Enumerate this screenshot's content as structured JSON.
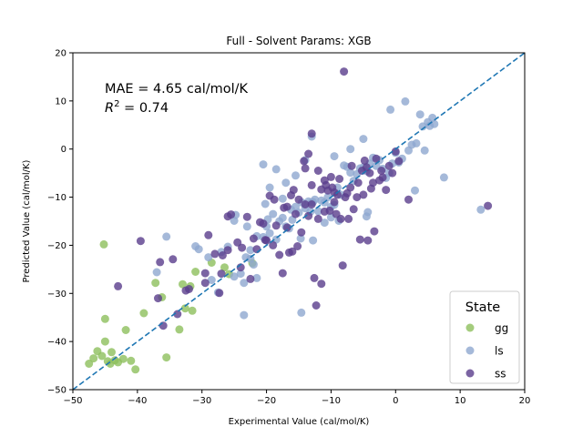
{
  "chart_data": {
    "type": "scatter",
    "title": "Full - Solvent Params: XGB",
    "xlabel": "Experimental Value (cal/mol/K)",
    "ylabel": "Predicted Value (cal/mol/K)",
    "xlim": [
      -50,
      20
    ],
    "ylim": [
      -50,
      20
    ],
    "xticks": [
      -50,
      -40,
      -30,
      -20,
      -10,
      0,
      10,
      20
    ],
    "yticks": [
      -50,
      -40,
      -30,
      -20,
      -10,
      0,
      10,
      20
    ],
    "grid": false,
    "annotations": {
      "mae": "MAE = 4.65 cal/mol/K",
      "r2_label": "R",
      "r2_sup": "2",
      "r2_value": " = 0.74"
    },
    "reference_line": {
      "style": "dashed",
      "x": [
        -50,
        20
      ],
      "y": [
        -50,
        20
      ],
      "color": "#1f77b4"
    },
    "legend": {
      "title": "State",
      "placement": "lower-right"
    },
    "series": [
      {
        "name": "gg",
        "color": "#8dbf5c",
        "points": [
          [
            -45.2,
            -19.8
          ],
          [
            -47.5,
            -44.6
          ],
          [
            -46.8,
            -43.5
          ],
          [
            -46.2,
            -42.0
          ],
          [
            -45.5,
            -43.0
          ],
          [
            -45.0,
            -40.0
          ],
          [
            -44.6,
            -44.1
          ],
          [
            -44.0,
            -42.2
          ],
          [
            -43.5,
            -43.9
          ],
          [
            -44.2,
            -44.6
          ],
          [
            -43.0,
            -44.3
          ],
          [
            -42.2,
            -43.6
          ],
          [
            -41.0,
            -44.0
          ],
          [
            -40.3,
            -45.8
          ],
          [
            -41.8,
            -37.6
          ],
          [
            -45.0,
            -35.3
          ],
          [
            -39.0,
            -34.1
          ],
          [
            -37.2,
            -27.8
          ],
          [
            -36.2,
            -30.8
          ],
          [
            -35.5,
            -43.3
          ],
          [
            -33.0,
            -28.1
          ],
          [
            -32.6,
            -33.1
          ],
          [
            -33.5,
            -37.5
          ],
          [
            -31.8,
            -28.5
          ],
          [
            -31.5,
            -33.6
          ],
          [
            -31.0,
            -25.5
          ],
          [
            -28.5,
            -23.6
          ],
          [
            -26.5,
            -24.6
          ],
          [
            -25.8,
            -26.0
          ],
          [
            -22.2,
            -23.7
          ]
        ]
      },
      {
        "name": "ls",
        "color": "#8fa8cf",
        "points": [
          [
            -35.5,
            -18.2
          ],
          [
            -37.0,
            -25.6
          ],
          [
            -31.0,
            -20.2
          ],
          [
            -30.5,
            -20.8
          ],
          [
            -27.0,
            -21.4
          ],
          [
            -29.0,
            -22.5
          ],
          [
            -28.5,
            -27.2
          ],
          [
            -27.5,
            -29.8
          ],
          [
            -25.0,
            -26.5
          ],
          [
            -24.0,
            -25.9
          ],
          [
            -23.5,
            -27.8
          ],
          [
            -23.2,
            -22.5
          ],
          [
            -22.5,
            -22.8
          ],
          [
            -22.0,
            -24.0
          ],
          [
            -21.5,
            -26.8
          ],
          [
            -23.5,
            -34.5
          ],
          [
            -25.0,
            -14.9
          ],
          [
            -24.8,
            -13.7
          ],
          [
            -23.0,
            -16.1
          ],
          [
            -21.5,
            -18.1
          ],
          [
            -20.5,
            -18.3
          ],
          [
            -20.0,
            -16.1
          ],
          [
            -19.8,
            -14.6
          ],
          [
            -19.5,
            -17.5
          ],
          [
            -19.0,
            -13.5
          ],
          [
            -18.5,
            -18.8
          ],
          [
            -18.0,
            -15.0
          ],
          [
            -17.5,
            -14.3
          ],
          [
            -17.0,
            -16.1
          ],
          [
            -16.5,
            -16.5
          ],
          [
            -16.0,
            -14.7
          ],
          [
            -15.5,
            -12.0
          ],
          [
            -15.0,
            -13.2
          ],
          [
            -14.7,
            -18.6
          ],
          [
            -14.5,
            -11.1
          ],
          [
            -14.0,
            -12.3
          ],
          [
            -13.5,
            -10.9
          ],
          [
            -13.2,
            -13.0
          ],
          [
            -13.0,
            -11.1
          ],
          [
            -12.8,
            -11.0
          ],
          [
            -12.5,
            -10.5
          ],
          [
            -12.0,
            -12.9
          ],
          [
            -11.5,
            -10.7
          ],
          [
            -11.0,
            -11.1
          ],
          [
            -10.5,
            -10.0
          ],
          [
            -10.0,
            -12.0
          ],
          [
            -9.5,
            -11.6
          ],
          [
            -9.0,
            -8.0
          ],
          [
            -8.8,
            -14.9
          ],
          [
            -8.5,
            -9.5
          ],
          [
            -8.0,
            -3.4
          ],
          [
            -7.5,
            -3.7
          ],
          [
            -7.0,
            -4.9
          ],
          [
            -6.5,
            -6.6
          ],
          [
            -6.0,
            -5.2
          ],
          [
            -5.5,
            -4.0
          ],
          [
            -5.0,
            -3.8
          ],
          [
            -4.5,
            -4.6
          ],
          [
            -4.3,
            -13.1
          ],
          [
            -4.0,
            -3.0
          ],
          [
            -3.5,
            -1.8
          ],
          [
            -3.0,
            -3.5
          ],
          [
            -2.5,
            -2.3
          ],
          [
            -2.0,
            -4.1
          ],
          [
            -1.5,
            -6.0
          ],
          [
            -1.0,
            -5.0
          ],
          [
            -0.5,
            -3.0
          ],
          [
            0.0,
            -0.8
          ],
          [
            0.5,
            -2.8
          ],
          [
            1.0,
            -2.0
          ],
          [
            1.5,
            9.9
          ],
          [
            2.0,
            -0.3
          ],
          [
            2.5,
            0.9
          ],
          [
            3.0,
            -8.6
          ],
          [
            3.2,
            1.2
          ],
          [
            3.8,
            7.2
          ],
          [
            4.2,
            4.7
          ],
          [
            4.5,
            -0.3
          ],
          [
            5.0,
            5.6
          ],
          [
            5.3,
            4.8
          ],
          [
            5.7,
            6.5
          ],
          [
            6.0,
            5.2
          ],
          [
            -0.8,
            8.2
          ],
          [
            -5.0,
            2.1
          ],
          [
            -7.0,
            0.0
          ],
          [
            -9.5,
            -1.5
          ],
          [
            -13.0,
            2.6
          ],
          [
            -15.5,
            -5.5
          ],
          [
            -18.5,
            -4.2
          ],
          [
            -20.5,
            -3.2
          ],
          [
            -19.5,
            -8.0
          ],
          [
            -17.0,
            -7.0
          ],
          [
            -14.0,
            -2.3
          ],
          [
            -14.6,
            -34.0
          ],
          [
            -11.0,
            -15.3
          ],
          [
            -12.8,
            -19.0
          ],
          [
            -10.0,
            -14.2
          ],
          [
            -4.5,
            -14.0
          ],
          [
            7.5,
            -5.9
          ],
          [
            13.2,
            -12.6
          ],
          [
            -22.5,
            -21.0
          ],
          [
            -26.0,
            -20.3
          ],
          [
            -20.2,
            -11.4
          ],
          [
            -17.5,
            -10.3
          ],
          [
            -16.2,
            -12.6
          ]
        ]
      },
      {
        "name": "ss",
        "color": "#5a3d8c",
        "points": [
          [
            -43.0,
            -28.5
          ],
          [
            -39.5,
            -19.1
          ],
          [
            -36.5,
            -23.5
          ],
          [
            -34.5,
            -22.9
          ],
          [
            -36.8,
            -31.0
          ],
          [
            -36.0,
            -36.7
          ],
          [
            -33.8,
            -34.3
          ],
          [
            -32.5,
            -29.4
          ],
          [
            -32.0,
            -29.1
          ],
          [
            -29.5,
            -25.8
          ],
          [
            -29.5,
            -27.8
          ],
          [
            -29.0,
            -17.9
          ],
          [
            -28.0,
            -21.8
          ],
          [
            -27.3,
            -29.9
          ],
          [
            -26.8,
            -22.1
          ],
          [
            -26.0,
            -21.0
          ],
          [
            -26.0,
            -14.0
          ],
          [
            -25.5,
            -13.6
          ],
          [
            -24.5,
            -19.4
          ],
          [
            -23.0,
            -14.1
          ],
          [
            -22.0,
            -18.6
          ],
          [
            -21.0,
            -15.2
          ],
          [
            -20.5,
            -15.5
          ],
          [
            -20.0,
            -19.0
          ],
          [
            -19.5,
            -9.7
          ],
          [
            -19.0,
            -20.0
          ],
          [
            -18.8,
            -10.5
          ],
          [
            -18.5,
            -15.9
          ],
          [
            -17.5,
            -25.8
          ],
          [
            -17.3,
            -12.2
          ],
          [
            -16.8,
            -16.3
          ],
          [
            -16.5,
            -21.5
          ],
          [
            -16.2,
            -9.6
          ],
          [
            -16.0,
            -21.3
          ],
          [
            -15.5,
            -13.5
          ],
          [
            -15.0,
            -10.5
          ],
          [
            -14.6,
            -17.3
          ],
          [
            -14.0,
            -11.5
          ],
          [
            -13.5,
            -13.9
          ],
          [
            -13.0,
            -11.5
          ],
          [
            -13.0,
            3.2
          ],
          [
            -12.6,
            -26.8
          ],
          [
            -12.3,
            -32.5
          ],
          [
            -12.0,
            -14.5
          ],
          [
            -11.5,
            -28.0
          ],
          [
            -11.0,
            -13.0
          ],
          [
            -10.5,
            -8.6
          ],
          [
            -10.2,
            -12.8
          ],
          [
            -10.0,
            -5.8
          ],
          [
            -9.8,
            -8.0
          ],
          [
            -9.5,
            -9.0
          ],
          [
            -9.2,
            -13.5
          ],
          [
            -9.0,
            -9.5
          ],
          [
            -8.5,
            -14.5
          ],
          [
            -8.2,
            -24.2
          ],
          [
            -8.0,
            16.1
          ],
          [
            -7.8,
            -10.0
          ],
          [
            -7.5,
            -9.2
          ],
          [
            -7.3,
            -14.5
          ],
          [
            -7.0,
            -8.0
          ],
          [
            -6.8,
            -3.5
          ],
          [
            -6.5,
            -12.5
          ],
          [
            -6.0,
            -10.0
          ],
          [
            -5.8,
            -7.0
          ],
          [
            -5.5,
            -18.8
          ],
          [
            -5.2,
            -4.5
          ],
          [
            -5.0,
            -9.5
          ],
          [
            -4.8,
            -2.4
          ],
          [
            -4.5,
            -3.8
          ],
          [
            -4.3,
            -19.0
          ],
          [
            -4.0,
            -5.0
          ],
          [
            -3.5,
            -7.0
          ],
          [
            -3.3,
            -17.1
          ],
          [
            -3.0,
            -2.0
          ],
          [
            -2.5,
            -6.5
          ],
          [
            -2.2,
            -4.5
          ],
          [
            -2.0,
            -5.9
          ],
          [
            -1.5,
            -8.5
          ],
          [
            -1.0,
            -3.5
          ],
          [
            -0.5,
            -5.0
          ],
          [
            0.0,
            -0.5
          ],
          [
            0.5,
            -2.5
          ],
          [
            -11.5,
            -8.4
          ],
          [
            -10.8,
            -7.5
          ],
          [
            -13.5,
            -1.0
          ],
          [
            -14.2,
            -2.5
          ],
          [
            -14.0,
            -4.0
          ],
          [
            -12.0,
            -4.5
          ],
          [
            -13.0,
            -7.5
          ],
          [
            -11.0,
            -6.5
          ],
          [
            -9.5,
            -11.0
          ],
          [
            -8.7,
            -6.2
          ],
          [
            -3.8,
            -8.2
          ],
          [
            2.0,
            -10.5
          ],
          [
            -21.5,
            -20.8
          ],
          [
            -23.8,
            -20.5
          ],
          [
            -27.0,
            -25.9
          ],
          [
            -24.0,
            -24.6
          ],
          [
            -20.2,
            -18.9
          ],
          [
            -18.0,
            -22.0
          ],
          [
            -22.5,
            -27.0
          ],
          [
            14.3,
            -11.8
          ],
          [
            -16.8,
            -12.0
          ],
          [
            -15.8,
            -8.5
          ],
          [
            -15.2,
            -20.2
          ]
        ]
      }
    ]
  }
}
